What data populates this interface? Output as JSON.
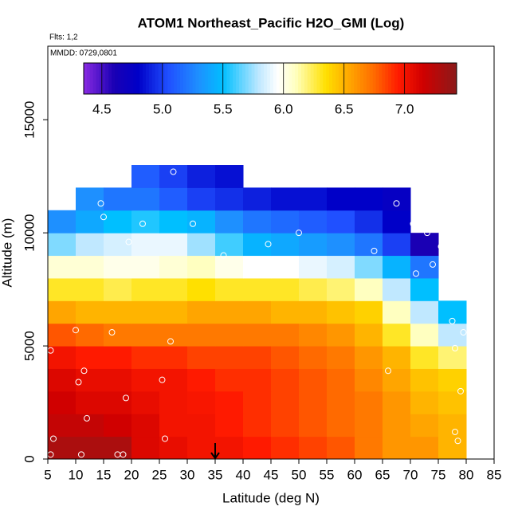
{
  "chart_data": {
    "type": "heatmap",
    "title": "ATOM1 Northeast_Pacific H2O_GMI (Log)",
    "note_flights": "Flts: 1,2",
    "note_dates": "MMDD: 0729,0801",
    "x_label": "Latitude (deg N)",
    "y_label": "Altitude (m)",
    "xlim": [
      5,
      85
    ],
    "ylim": [
      0,
      18250
    ],
    "xticks": [
      5,
      10,
      15,
      20,
      25,
      30,
      35,
      40,
      45,
      50,
      55,
      60,
      65,
      70,
      75,
      80,
      85
    ],
    "yticks": [
      0,
      5000,
      10000,
      15000
    ],
    "x_edges": [
      5,
      10,
      15,
      20,
      25,
      30,
      35,
      40,
      45,
      50,
      55,
      60,
      65,
      70,
      75,
      80
    ],
    "y_edges": [
      0,
      1000,
      2000,
      3000,
      4000,
      5000,
      6000,
      7000,
      8000,
      9000,
      10000,
      11000,
      12000,
      13000
    ],
    "z": [
      [
        7.3,
        7.3,
        7.3,
        7.1,
        7.05,
        7.0,
        7.0,
        6.95,
        6.9,
        6.85,
        6.8,
        6.7,
        6.6,
        6.6,
        6.5
      ],
      [
        7.2,
        7.2,
        7.15,
        7.1,
        7.0,
        7.0,
        6.95,
        6.9,
        6.85,
        6.8,
        6.75,
        6.7,
        6.6,
        6.55,
        6.5
      ],
      [
        7.15,
        7.1,
        7.1,
        7.05,
        7.0,
        6.98,
        6.95,
        6.9,
        6.85,
        6.8,
        6.75,
        6.7,
        6.6,
        6.5,
        6.45
      ],
      [
        7.1,
        7.05,
        7.05,
        7.0,
        7.0,
        6.95,
        6.9,
        6.9,
        6.85,
        6.8,
        6.75,
        6.65,
        6.55,
        6.45,
        6.4
      ],
      [
        7.0,
        6.95,
        6.95,
        6.9,
        6.9,
        6.85,
        6.85,
        6.85,
        6.8,
        6.75,
        6.7,
        6.6,
        6.5,
        6.3,
        6.2
      ],
      [
        6.8,
        6.75,
        6.7,
        6.7,
        6.7,
        6.7,
        6.7,
        6.7,
        6.7,
        6.65,
        6.6,
        6.5,
        6.3,
        6.1,
        5.8
      ],
      [
        6.55,
        6.5,
        6.5,
        6.5,
        6.5,
        6.55,
        6.55,
        6.55,
        6.5,
        6.5,
        6.45,
        6.4,
        6.1,
        5.8,
        5.5
      ],
      [
        6.3,
        6.3,
        6.25,
        6.3,
        6.3,
        6.35,
        6.3,
        6.3,
        6.3,
        6.25,
        6.2,
        6.1,
        5.8,
        5.5,
        null
      ],
      [
        6.05,
        6.05,
        6.0,
        6.0,
        6.05,
        6.1,
        6.0,
        5.95,
        5.95,
        5.9,
        5.85,
        5.7,
        5.45,
        5.2,
        null
      ],
      [
        5.7,
        5.8,
        5.85,
        5.9,
        5.9,
        5.75,
        5.6,
        5.45,
        5.4,
        5.35,
        5.3,
        5.2,
        5.0,
        4.6,
        null
      ],
      [
        5.3,
        5.4,
        5.5,
        5.55,
        5.5,
        5.45,
        5.3,
        5.2,
        5.15,
        5.1,
        5.05,
        4.95,
        4.8,
        null,
        null
      ],
      [
        null,
        5.3,
        5.2,
        5.2,
        5.1,
        5.0,
        4.95,
        4.9,
        4.85,
        4.85,
        4.8,
        4.8,
        4.75,
        null,
        null
      ],
      [
        null,
        null,
        null,
        5.1,
        5.0,
        4.9,
        4.85,
        null,
        null,
        null,
        null,
        null,
        null,
        null,
        null
      ]
    ],
    "points": {
      "color": "#ffffff",
      "x": [
        5.5,
        6,
        5.5,
        8,
        10,
        10.5,
        11,
        11.5,
        12,
        14.5,
        15,
        16.5,
        17.5,
        18.5,
        19,
        19.5,
        22,
        25.5,
        26,
        27,
        27.5,
        31,
        36.5,
        44.5,
        50,
        63.5,
        66,
        67.5,
        70.5,
        71,
        73,
        74,
        75.5,
        76.5,
        77,
        77.5,
        78,
        78,
        78.5,
        79,
        79.5
      ],
      "y": [
        200,
        900,
        4800,
        11300,
        5700,
        3400,
        200,
        3900,
        1800,
        11300,
        10700,
        5600,
        200,
        200,
        2700,
        9600,
        10400,
        3500,
        900,
        5200,
        12700,
        10400,
        9000,
        9500,
        10000,
        9200,
        3900,
        11300,
        10400,
        8200,
        10000,
        8600,
        9400,
        9700,
        7700,
        6100,
        4900,
        1200,
        800,
        3000,
        5600
      ]
    },
    "marker_x": 35,
    "colorbar": {
      "lim": [
        4.35,
        7.43
      ],
      "ticks": [
        {
          "value": 4.5,
          "label": "4.5"
        },
        {
          "value": 5.0,
          "label": "5.0"
        },
        {
          "value": 5.5,
          "label": "5.5"
        },
        {
          "value": 6.0,
          "label": "6.0"
        },
        {
          "value": 6.5,
          "label": "6.5"
        },
        {
          "value": 7.0,
          "label": "7.0"
        }
      ],
      "colormap": [
        {
          "value": 4.35,
          "color": "#8a2be2"
        },
        {
          "value": 4.6,
          "color": "#1a00b4"
        },
        {
          "value": 4.8,
          "color": "#0000c8"
        },
        {
          "value": 5.05,
          "color": "#2050ff"
        },
        {
          "value": 5.3,
          "color": "#1e90ff"
        },
        {
          "value": 5.5,
          "color": "#00bfff"
        },
        {
          "value": 5.8,
          "color": "#c0e8ff"
        },
        {
          "value": 5.95,
          "color": "#ffffff"
        },
        {
          "value": 6.1,
          "color": "#ffffc0"
        },
        {
          "value": 6.35,
          "color": "#ffe000"
        },
        {
          "value": 6.55,
          "color": "#ffa500"
        },
        {
          "value": 6.75,
          "color": "#ff6a00"
        },
        {
          "value": 6.95,
          "color": "#ff1a00"
        },
        {
          "value": 7.15,
          "color": "#d00000"
        },
        {
          "value": 7.43,
          "color": "#8b1a1a"
        }
      ]
    }
  }
}
